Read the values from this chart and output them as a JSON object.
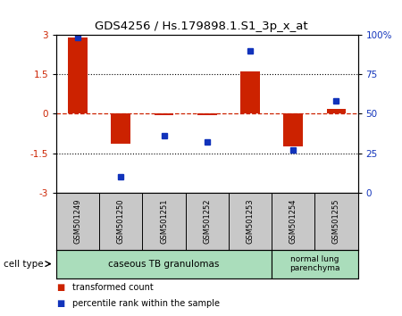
{
  "title": "GDS4256 / Hs.179898.1.S1_3p_x_at",
  "samples": [
    "GSM501249",
    "GSM501250",
    "GSM501251",
    "GSM501252",
    "GSM501253",
    "GSM501254",
    "GSM501255"
  ],
  "transformed_counts": [
    2.88,
    -1.15,
    -0.05,
    -0.05,
    1.6,
    -1.25,
    0.18
  ],
  "percentile_ranks": [
    98,
    10,
    36,
    32,
    90,
    27,
    58
  ],
  "ylim_left": [
    -3,
    3
  ],
  "ylim_right": [
    0,
    100
  ],
  "yticks_left": [
    -3,
    -1.5,
    0,
    1.5,
    3
  ],
  "yticks_right": [
    0,
    25,
    50,
    75,
    100
  ],
  "ytick_labels_left": [
    "-3",
    "-1.5",
    "0",
    "1.5",
    "3"
  ],
  "ytick_labels_right": [
    "0",
    "25",
    "50",
    "75",
    "100%"
  ],
  "bar_color": "#cc2200",
  "dot_color": "#1133bb",
  "zero_line_color": "#cc2200",
  "grid_color": "#000000",
  "cell_type_label": "cell type",
  "group1_label": "caseous TB granulomas",
  "group1_count": 5,
  "group2_label": "normal lung\nparenchyma",
  "group2_count": 2,
  "cell_type_color": "#aaddbb",
  "legend_items": [
    {
      "color": "#cc2200",
      "label": "transformed count"
    },
    {
      "color": "#1133bb",
      "label": "percentile rank within the sample"
    }
  ],
  "background_color": "#ffffff",
  "sample_box_color": "#c8c8c8"
}
